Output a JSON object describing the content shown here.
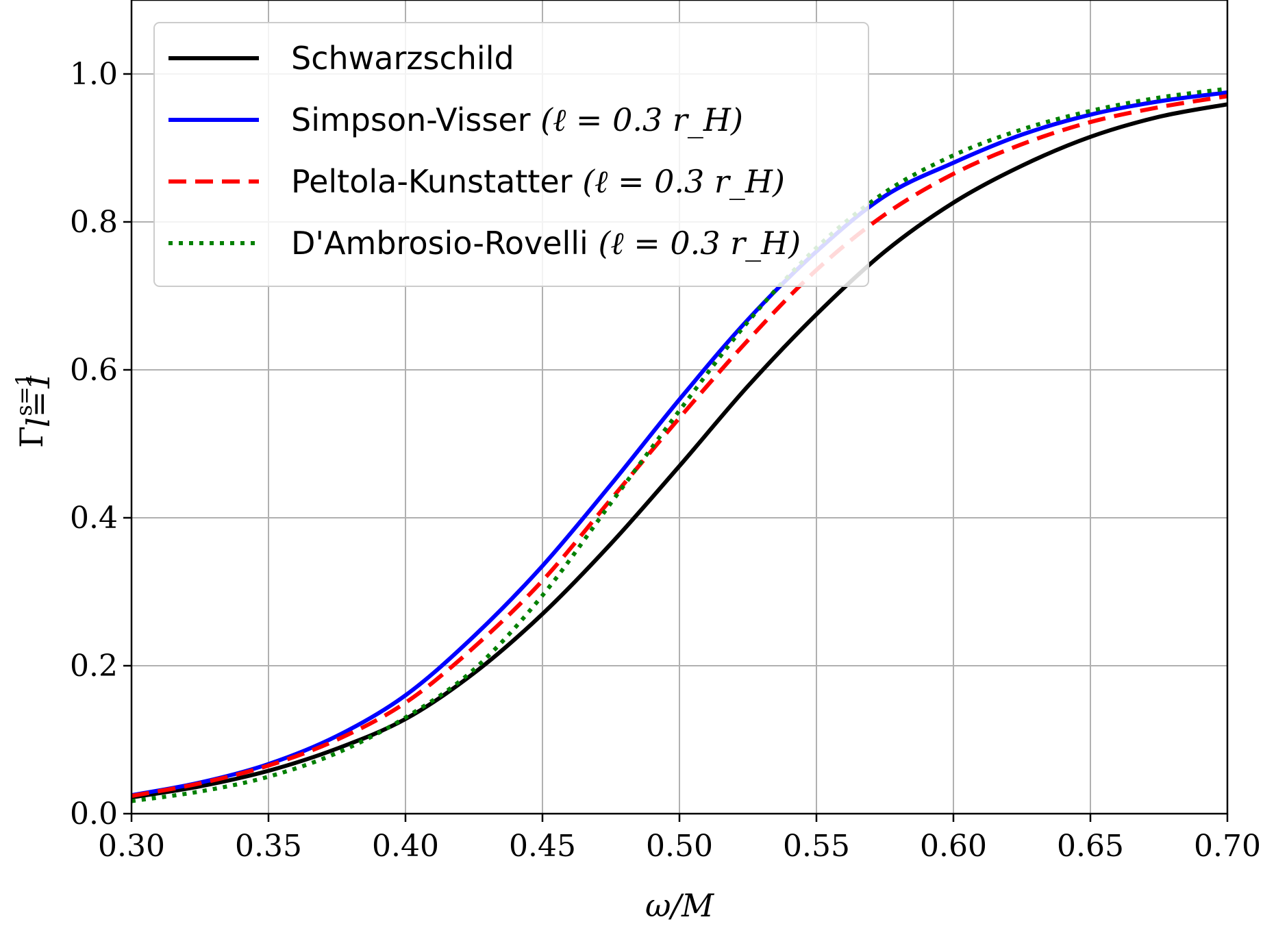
{
  "chart_data": {
    "type": "line",
    "xlabel": "ω/M",
    "ylabel": "Γ",
    "ylabel_sup": "s=1",
    "ylabel_sub": "l=1",
    "xlim": [
      0.3,
      0.7
    ],
    "ylim": [
      0.0,
      1.1
    ],
    "grid": true,
    "legend_position": "top-left",
    "xticks": [
      0.3,
      0.35,
      0.4,
      0.45,
      0.5,
      0.55,
      0.6,
      0.65,
      0.7
    ],
    "xtick_labels": [
      "0.30",
      "0.35",
      "0.40",
      "0.45",
      "0.50",
      "0.55",
      "0.60",
      "0.65",
      "0.70"
    ],
    "yticks": [
      0.0,
      0.2,
      0.4,
      0.6,
      0.8,
      1.0
    ],
    "ytick_labels": [
      "0.0",
      "0.2",
      "0.4",
      "0.6",
      "0.8",
      "1.0"
    ],
    "x": [
      0.3,
      0.325,
      0.35,
      0.375,
      0.4,
      0.425,
      0.45,
      0.475,
      0.5,
      0.525,
      0.55,
      0.575,
      0.6,
      0.625,
      0.65,
      0.675,
      0.7
    ],
    "series": [
      {
        "name": "Schwarzschild",
        "name_math": "",
        "color": "#000000",
        "style": "solid",
        "values": [
          0.022,
          0.037,
          0.058,
          0.088,
          0.128,
          0.19,
          0.27,
          0.365,
          0.47,
          0.578,
          0.675,
          0.76,
          0.826,
          0.876,
          0.915,
          0.942,
          0.959
        ]
      },
      {
        "name": "Simpson-Visser ",
        "name_math": "(ℓ = 0.3 r_H)",
        "color": "#0000ff",
        "style": "solid",
        "values": [
          0.025,
          0.042,
          0.067,
          0.105,
          0.16,
          0.24,
          0.335,
          0.445,
          0.56,
          0.668,
          0.76,
          0.835,
          0.88,
          0.918,
          0.945,
          0.963,
          0.975
        ]
      },
      {
        "name": "Peltola-Kunstatter ",
        "name_math": "(ℓ = 0.3 r_H)",
        "color": "#ff0000",
        "style": "dashed",
        "values": [
          0.024,
          0.041,
          0.065,
          0.1,
          0.15,
          0.225,
          0.315,
          0.425,
          0.535,
          0.64,
          0.735,
          0.81,
          0.865,
          0.905,
          0.935,
          0.955,
          0.97
        ]
      },
      {
        "name": "D'Ambrosio-Rovelli ",
        "name_math": "(ℓ = 0.3 r_H)",
        "color": "#008000",
        "style": "dotted",
        "values": [
          0.017,
          0.03,
          0.05,
          0.082,
          0.13,
          0.195,
          0.295,
          0.42,
          0.545,
          0.665,
          0.765,
          0.84,
          0.89,
          0.925,
          0.95,
          0.968,
          0.98
        ]
      }
    ]
  }
}
